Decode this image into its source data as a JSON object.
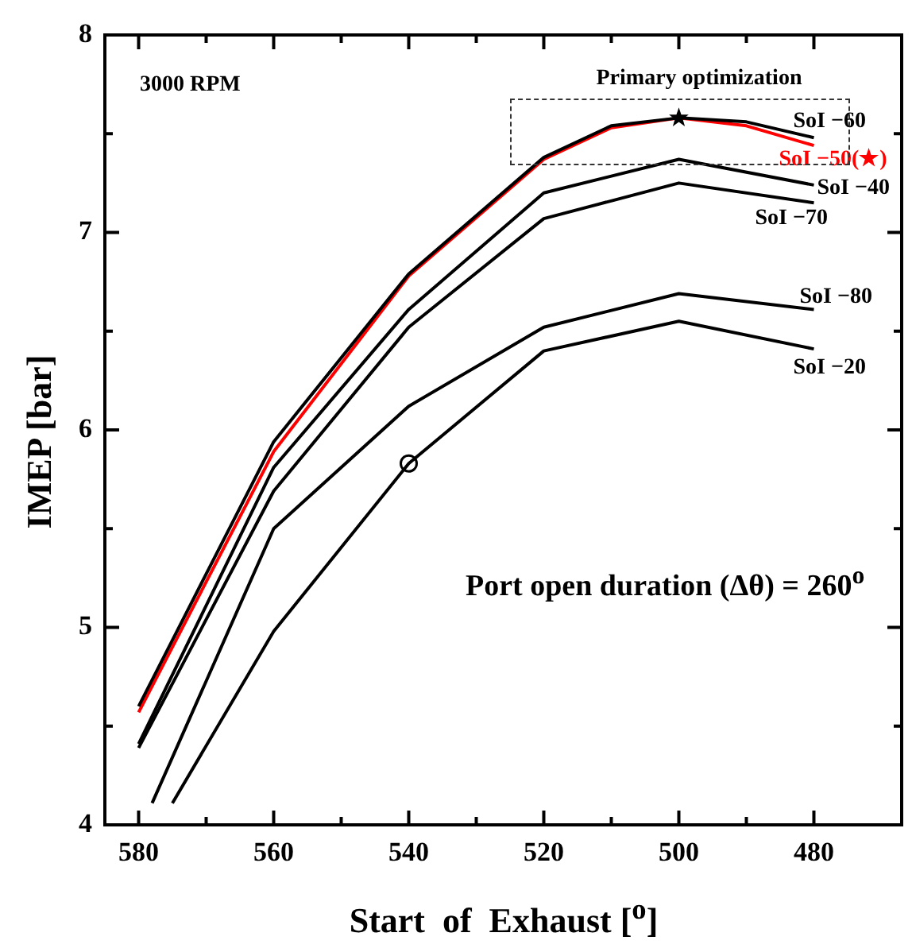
{
  "chart_data": {
    "type": "line",
    "xlabel": "Start  of  Exhaust [$^{o}$]",
    "ylabel": "IMEP [bar]",
    "annotations": [
      "3000 RPM",
      "Primary optimization",
      "Port open duration (Δθ) = 260$^{o}$"
    ],
    "xlim": [
      585,
      467
    ],
    "ylim": [
      4,
      8
    ],
    "xticks": [
      580,
      {
        "value": 570,
        "label": null
      },
      560,
      {
        "value": 550,
        "label": null
      },
      540,
      {
        "value": 530,
        "label": null
      },
      520,
      {
        "value": 510,
        "label": null
      },
      500,
      {
        "value": 490,
        "label": null
      },
      480
    ],
    "yticks": [
      4,
      {
        "value": 4.5,
        "label": null
      },
      5,
      {
        "value": 5.5,
        "label": null
      },
      6,
      {
        "value": 6.5,
        "label": null
      },
      7,
      {
        "value": 7.5,
        "label": null
      },
      8
    ],
    "grid": false,
    "legend": "right",
    "marker": "none",
    "line_style": "solid",
    "series": [
      {
        "name": "SoI −60",
        "color": "#000000",
        "x": [
          580,
          560,
          540,
          520,
          510,
          500,
          490,
          480
        ],
        "values": [
          4.6,
          5.94,
          6.79,
          7.38,
          7.54,
          7.58,
          7.56,
          7.48
        ]
      },
      {
        "name": "SoI −50(★)",
        "color": "#ff0000",
        "x": [
          580,
          560,
          540,
          520,
          510,
          500,
          490,
          480
        ],
        "values": [
          4.57,
          5.89,
          6.78,
          7.37,
          7.53,
          7.58,
          7.54,
          7.44
        ]
      },
      {
        "name": "SoI −40",
        "color": "#000000",
        "x": [
          580,
          560,
          540,
          520,
          500,
          480
        ],
        "values": [
          4.41,
          5.81,
          6.61,
          7.2,
          7.37,
          7.24
        ]
      },
      {
        "name": "SoI −70",
        "color": "#000000",
        "x": [
          580,
          560,
          540,
          520,
          500,
          480
        ],
        "values": [
          4.39,
          5.69,
          6.52,
          7.07,
          7.25,
          7.15
        ]
      },
      {
        "name": "SoI −80",
        "color": "#000000",
        "x": [
          578,
          560,
          540,
          520,
          500,
          480
        ],
        "values": [
          4.11,
          5.5,
          6.12,
          6.52,
          6.69,
          6.61
        ]
      },
      {
        "name": "SoI −20",
        "color": "#000000",
        "x": [
          575,
          560,
          540,
          520,
          500,
          480
        ],
        "values": [
          4.11,
          4.98,
          5.83,
          6.4,
          6.55,
          6.41
        ]
      },
      {
        "type": "scatter",
        "color": "#000000",
        "marker": "star",
        "x": [
          500
        ],
        "values": [
          7.58
        ]
      },
      {
        "type": "scatter",
        "color": "#000000",
        "marker": "circle",
        "x": [
          540
        ],
        "values": [
          5.83
        ]
      }
    ]
  }
}
